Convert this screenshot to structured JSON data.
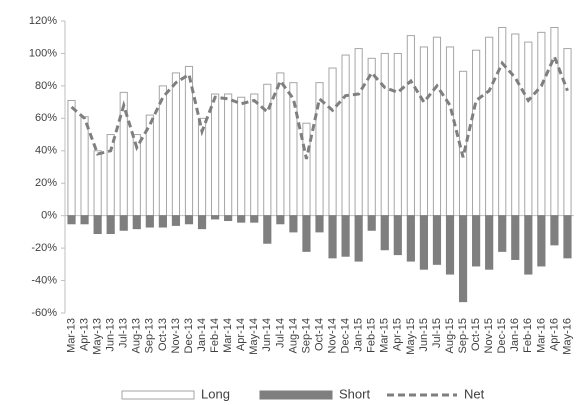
{
  "chart_data": {
    "type": "bar-line",
    "categories": [
      "Mar-13",
      "Apr-13",
      "May-13",
      "Jun-13",
      "Jul-13",
      "Aug-13",
      "Sep-13",
      "Oct-13",
      "Nov-13",
      "Dec-13",
      "Jan-14",
      "Feb-14",
      "Mar-14",
      "Apr-14",
      "May-14",
      "Jun-14",
      "Jul-14",
      "Aug-14",
      "Sep-14",
      "Oct-14",
      "Nov-14",
      "Dec-14",
      "Jan-15",
      "Feb-15",
      "Mar-15",
      "Apr-15",
      "May-15",
      "Jun-15",
      "Jul-15",
      "Aug-15",
      "Sep-15",
      "Oct-15",
      "Nov-15",
      "Dec-15",
      "Jan-16",
      "Feb-16",
      "Mar-16",
      "Apr-16",
      "May-16"
    ],
    "series": [
      {
        "name": "Long",
        "kind": "bar",
        "color": "#ffffff",
        "stroke": "#a6a6a6",
        "values": [
          71,
          61,
          40,
          50,
          76,
          50,
          62,
          80,
          88,
          92,
          60,
          75,
          75,
          73,
          75,
          81,
          88,
          82,
          57,
          82,
          91,
          99,
          103,
          97,
          100,
          100,
          111,
          104,
          110,
          104,
          89,
          102,
          110,
          116,
          112,
          107,
          113,
          116,
          103
        ]
      },
      {
        "name": "Short",
        "kind": "bar",
        "color": "#7f7f7f",
        "stroke": "#7f7f7f",
        "values": [
          -5,
          -5,
          -11,
          -11,
          -9,
          -8,
          -7,
          -7,
          -6,
          -5,
          -8,
          -2,
          -3,
          -4,
          -4,
          -17,
          -5,
          -10,
          -22,
          -10,
          -26,
          -25,
          -28,
          -9,
          -21,
          -24,
          -28,
          -33,
          -30,
          -36,
          -53,
          -31,
          -33,
          -22,
          -27,
          -36,
          -31,
          -18,
          -26
        ]
      },
      {
        "name": "Net",
        "kind": "line",
        "color": "#7f7f7f",
        "values": [
          67,
          60,
          38,
          40,
          68,
          42,
          56,
          73,
          82,
          87,
          52,
          73,
          72,
          69,
          71,
          64,
          83,
          72,
          35,
          72,
          65,
          74,
          75,
          88,
          79,
          76,
          83,
          70,
          80,
          68,
          36,
          71,
          77,
          94,
          85,
          71,
          80,
          98,
          77
        ]
      }
    ],
    "ylim": [
      -60,
      120
    ],
    "yticks": [
      {
        "value": -60,
        "label": "-60%"
      },
      {
        "value": -40,
        "label": "-40%"
      },
      {
        "value": -20,
        "label": "-20%"
      },
      {
        "value": 0,
        "label": "0%"
      },
      {
        "value": 20,
        "label": "20%"
      },
      {
        "value": 40,
        "label": "40%"
      },
      {
        "value": 60,
        "label": "60%"
      },
      {
        "value": 80,
        "label": "80%"
      },
      {
        "value": 100,
        "label": "100%"
      },
      {
        "value": 120,
        "label": "120%"
      }
    ],
    "legend": "bottom"
  }
}
